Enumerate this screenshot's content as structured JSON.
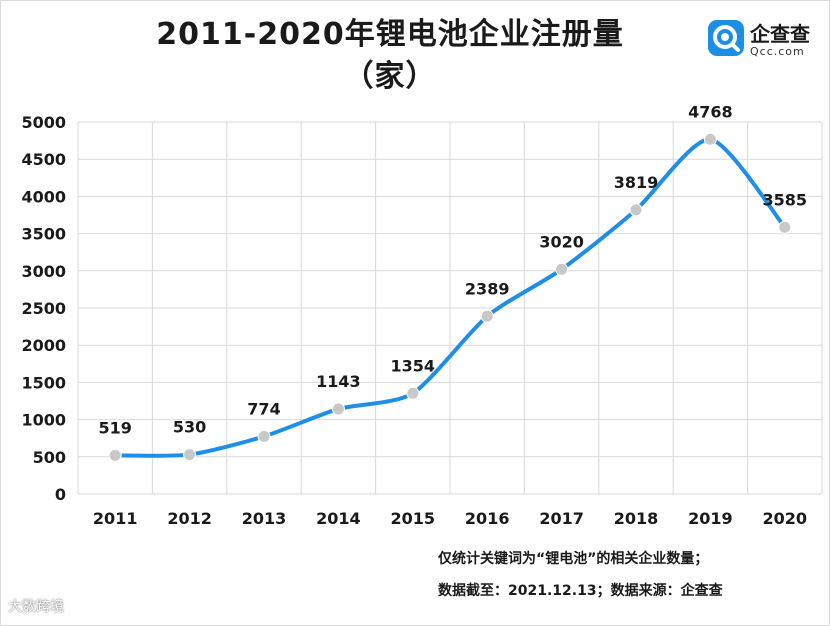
{
  "chart_data": {
    "type": "line",
    "title": "2011-2020年锂电池企业注册量",
    "subtitle": "（家）",
    "categories": [
      "2011",
      "2012",
      "2013",
      "2014",
      "2015",
      "2016",
      "2017",
      "2018",
      "2019",
      "2020"
    ],
    "values": [
      519,
      530,
      774,
      1143,
      1354,
      2389,
      3020,
      3819,
      4768,
      3585
    ],
    "data_labels": [
      "519",
      "530",
      "774",
      "1143",
      "1354",
      "2389",
      "3020",
      "3819",
      "4768",
      "3585"
    ],
    "ylim": [
      0,
      5000
    ],
    "yticks": [
      "0",
      "500",
      "1000",
      "1500",
      "2000",
      "2500",
      "3000",
      "3500",
      "4000",
      "4500",
      "5000"
    ],
    "grid": true,
    "line_color": "#1e8ee6",
    "marker_color": "#c8c8c8"
  },
  "logo": {
    "name": "企查查",
    "sub": "Qcc.com",
    "color": "#1c8ee6"
  },
  "footnotes": {
    "line1": "仅统计关键词为“锂电池”的相关企业数量；",
    "line2": "数据截至：2021.12.13；数据来源：企查查"
  },
  "watermark": "大数跨境"
}
